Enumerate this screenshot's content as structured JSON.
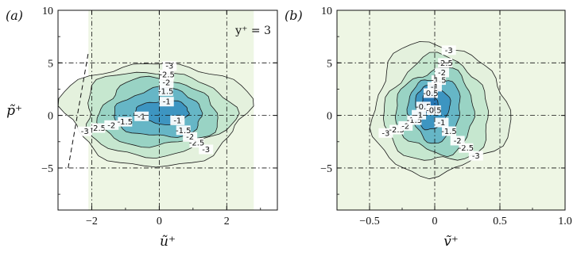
{
  "chart_data": [
    {
      "panel_label": "(a)",
      "type": "contour",
      "xlabel": "ũ⁺",
      "ylabel": "p̃⁺",
      "xlim": [
        -3,
        3.5
      ],
      "ylim": [
        -9,
        10
      ],
      "xticks": [
        "−2",
        "0",
        "2"
      ],
      "xtick_values": [
        -2,
        0,
        2
      ],
      "yticks": [
        "−5",
        "0",
        "5",
        "10"
      ],
      "ytick_values": [
        -5,
        0,
        5,
        10
      ],
      "grid": "dash-dot at major ticks",
      "annotation": "y⁺ = 3",
      "shaded_region": {
        "x": [
          -2.1,
          2.8
        ],
        "color": "#eef6e4"
      },
      "contour_levels": [
        "-3",
        "-2.5",
        "-2",
        "-1.5",
        "-1"
      ],
      "contours": [
        {
          "level": -3,
          "cx": -0.1,
          "cy": 0.2,
          "rx": 2.7,
          "ry": 4.9,
          "color": "#e4f1dd"
        },
        {
          "level": -2.5,
          "cx": -0.1,
          "cy": 0.2,
          "rx": 2.2,
          "ry": 4.0,
          "color": "#c6e7cf"
        },
        {
          "level": -2,
          "cx": -0.05,
          "cy": 0.2,
          "rx": 1.75,
          "ry": 3.2,
          "color": "#99d3c4"
        },
        {
          "level": -1.5,
          "cx": 0.0,
          "cy": 0.2,
          "rx": 1.3,
          "ry": 2.3,
          "color": "#66b6c6"
        },
        {
          "level": -1,
          "cx": 0.1,
          "cy": 0.3,
          "rx": 0.8,
          "ry": 1.1,
          "color": "#3d95c1"
        }
      ],
      "reference_line": {
        "x": [
          -2.7,
          -2.1
        ],
        "y": [
          -5,
          6
        ],
        "style": "dashed"
      }
    },
    {
      "panel_label": "(b)",
      "type": "contour",
      "xlabel": "ṽ⁺",
      "ylabel": "",
      "xlim": [
        -0.75,
        1.0
      ],
      "ylim": [
        -9,
        10
      ],
      "xticks": [
        "−0.5",
        "0",
        "0.5",
        "1.0"
      ],
      "xtick_values": [
        -0.5,
        0,
        0.5,
        1.0
      ],
      "yticks": [
        "−5",
        "0",
        "5",
        "10"
      ],
      "ytick_values": [
        -5,
        0,
        5,
        10
      ],
      "grid": "dash-dot at major ticks",
      "shaded_region": {
        "x": [
          -0.75,
          1.0
        ],
        "color": "#eef6e4"
      },
      "contour_levels": [
        "-3",
        "-2.5",
        "-2",
        "-1.5",
        "-1",
        "-0.5"
      ],
      "contours": [
        {
          "level": -3,
          "cx": 0.03,
          "cy": 0.5,
          "rx": 0.52,
          "ry": 6.2,
          "color": "#e4f1dd"
        },
        {
          "level": -2.5,
          "cx": 0.02,
          "cy": 0.4,
          "rx": 0.4,
          "ry": 5.0,
          "color": "#c6e7cf"
        },
        {
          "level": -2,
          "cx": 0.01,
          "cy": 0.4,
          "rx": 0.3,
          "ry": 4.0,
          "color": "#99d3c4"
        },
        {
          "level": -1.5,
          "cx": 0.0,
          "cy": 0.6,
          "rx": 0.2,
          "ry": 3.0,
          "color": "#66b6c6"
        },
        {
          "level": -1,
          "cx": -0.02,
          "cy": 0.8,
          "rx": 0.13,
          "ry": 2.1,
          "color": "#3d95c1"
        },
        {
          "level": -0.5,
          "cx": -0.04,
          "cy": 1.2,
          "rx": 0.06,
          "ry": 1.0,
          "color": "#2878b5"
        }
      ]
    }
  ]
}
